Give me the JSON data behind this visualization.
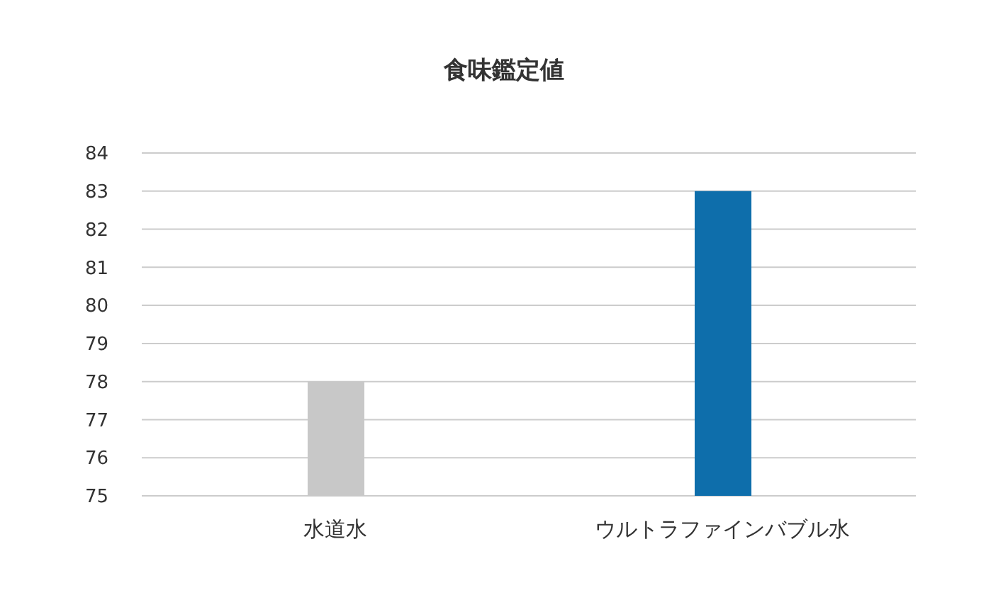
{
  "chart_data": {
    "type": "bar",
    "title": "食味鑑定値",
    "categories": [
      "水道水",
      "ウルトラファインバブル水"
    ],
    "values": [
      78,
      83
    ],
    "colors": [
      "#c8c8c8",
      "#0e6eab"
    ],
    "ylim": [
      75,
      84
    ],
    "yticks": [
      75,
      76,
      77,
      78,
      79,
      80,
      81,
      82,
      83,
      84
    ],
    "grid": "y"
  }
}
